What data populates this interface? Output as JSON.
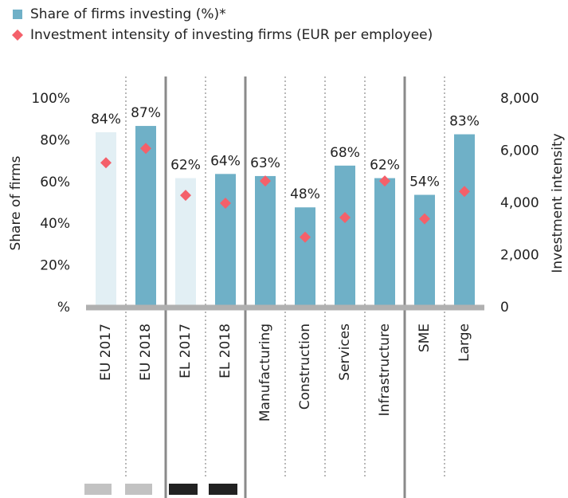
{
  "chart_data": {
    "type": "bar",
    "categories": [
      "EU 2017",
      "EU 2018",
      "EL 2017",
      "EL 2018",
      "Manufacturing",
      "Construction",
      "Services",
      "Infrastructure",
      "SME",
      "Large"
    ],
    "series": [
      {
        "name": "Share of firms investing (%)*",
        "color": "#6fb0c7",
        "colors": [
          "#e2eff4",
          "#6fb0c7",
          "#e2eff4",
          "#6fb0c7",
          "#6fb0c7",
          "#6fb0c7",
          "#6fb0c7",
          "#6fb0c7",
          "#6fb0c7",
          "#6fb0c7"
        ],
        "values": [
          84,
          87,
          62,
          64,
          63,
          48,
          68,
          62,
          54,
          83
        ],
        "value_labels": [
          "84%",
          "87%",
          "62%",
          "64%",
          "63%",
          "48%",
          "68%",
          "62%",
          "54%",
          "83%"
        ]
      },
      {
        "name": "Investment intensity of investing firms (EUR per employee)",
        "type": "scatter",
        "axis": "y2",
        "color": "#f4606a",
        "values": [
          5550,
          6100,
          4300,
          4000,
          4850,
          2700,
          3450,
          4850,
          3400,
          4450
        ]
      }
    ],
    "y_label": "Share of firms",
    "y2_label": "Investment intensity",
    "ylim": [
      0,
      100
    ],
    "yticks": [
      {
        "value": 0,
        "label": "%"
      },
      {
        "value": 20,
        "label": "20%"
      },
      {
        "value": 40,
        "label": "40%"
      },
      {
        "value": 60,
        "label": "60%"
      },
      {
        "value": 80,
        "label": "80%"
      },
      {
        "value": 100,
        "label": "100%"
      }
    ],
    "y2lim": [
      0,
      8000
    ],
    "y2ticks": [
      0,
      {
        "value": 2000,
        "label": "2,000"
      },
      {
        "value": 4000,
        "label": "4,000"
      },
      {
        "value": 6000,
        "label": "6,000"
      },
      {
        "value": 8000,
        "label": "8,000"
      }
    ],
    "legend": "top-left"
  }
}
